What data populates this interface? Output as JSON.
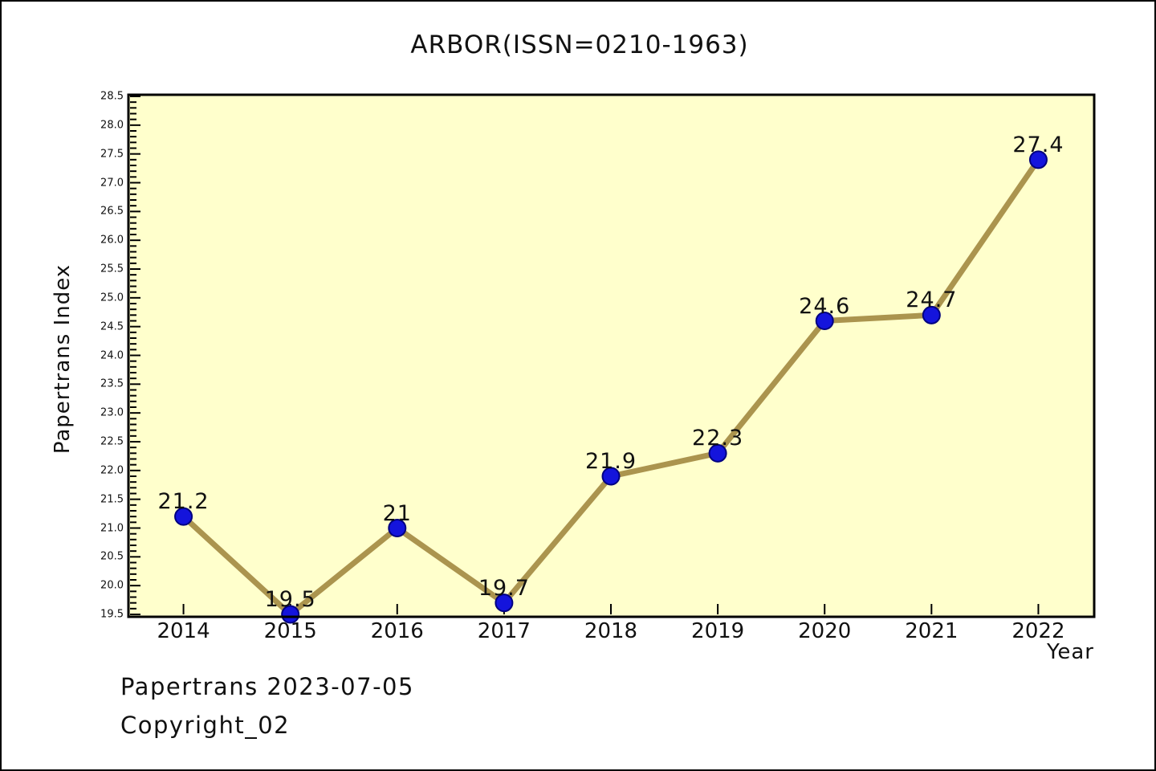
{
  "window": {
    "background": "#ffffff",
    "frame_border_color": "#000000"
  },
  "chart_data": {
    "type": "line",
    "title": "ARBOR(ISSN=0210-1963)",
    "xlabel": "Year",
    "ylabel": "Papertrans Index",
    "x": [
      2014,
      2015,
      2016,
      2017,
      2018,
      2019,
      2020,
      2021,
      2022
    ],
    "values": [
      21.2,
      19.5,
      21,
      19.7,
      21.9,
      22.3,
      24.6,
      24.7,
      27.4
    ],
    "point_labels": [
      "21.2",
      "19.5",
      "21",
      "19.7",
      "21.9",
      "22.3",
      "24.6",
      "24.7",
      "27.4"
    ],
    "series_name": "Papertrans Index",
    "xlim": [
      2013.5,
      2022.5
    ],
    "ylim": [
      19.5,
      28.5
    ],
    "y_major_step": 0.5,
    "y_minor_step": 0.1,
    "grid": false,
    "legend_position": "none",
    "tick_direction": "in",
    "colors": {
      "plot_background": "#FFFFCC",
      "line": "#AB944E",
      "marker_fill": "#1414DC",
      "marker_edge": "#000080",
      "axis": "#000000",
      "text": "#111111"
    },
    "annotations": [
      "Papertrans 2023-07-05",
      "Copyright_02"
    ]
  }
}
